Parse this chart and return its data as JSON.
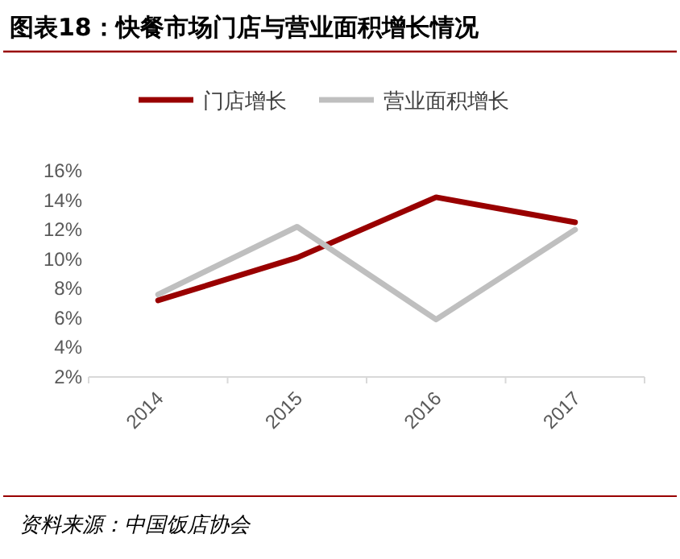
{
  "chart_data": {
    "type": "line",
    "title": "图表18：快餐市场门店与营业面积增长情况",
    "categories": [
      "2014",
      "2015",
      "2016",
      "2017"
    ],
    "series": [
      {
        "name": "门店增长",
        "color": "#990000",
        "values": [
          7.2,
          10.1,
          14.2,
          12.5
        ]
      },
      {
        "name": "营业面积增长",
        "color": "#bfbfbf",
        "values": [
          7.6,
          12.2,
          5.9,
          12.0
        ]
      }
    ],
    "ylim": [
      2,
      16
    ],
    "yticks": [
      {
        "value": 2,
        "label": "2%"
      },
      {
        "value": 4,
        "label": "4%"
      },
      {
        "value": 6,
        "label": "6%"
      },
      {
        "value": 8,
        "label": "8%"
      },
      {
        "value": 10,
        "label": "10%"
      },
      {
        "value": 12,
        "label": "12%"
      },
      {
        "value": 14,
        "label": "14%"
      },
      {
        "value": 16,
        "label": "16%"
      }
    ],
    "grid": false,
    "legend": "top",
    "line_style": "solid",
    "annotations": [
      "资料来源：中国饭店协会"
    ]
  }
}
